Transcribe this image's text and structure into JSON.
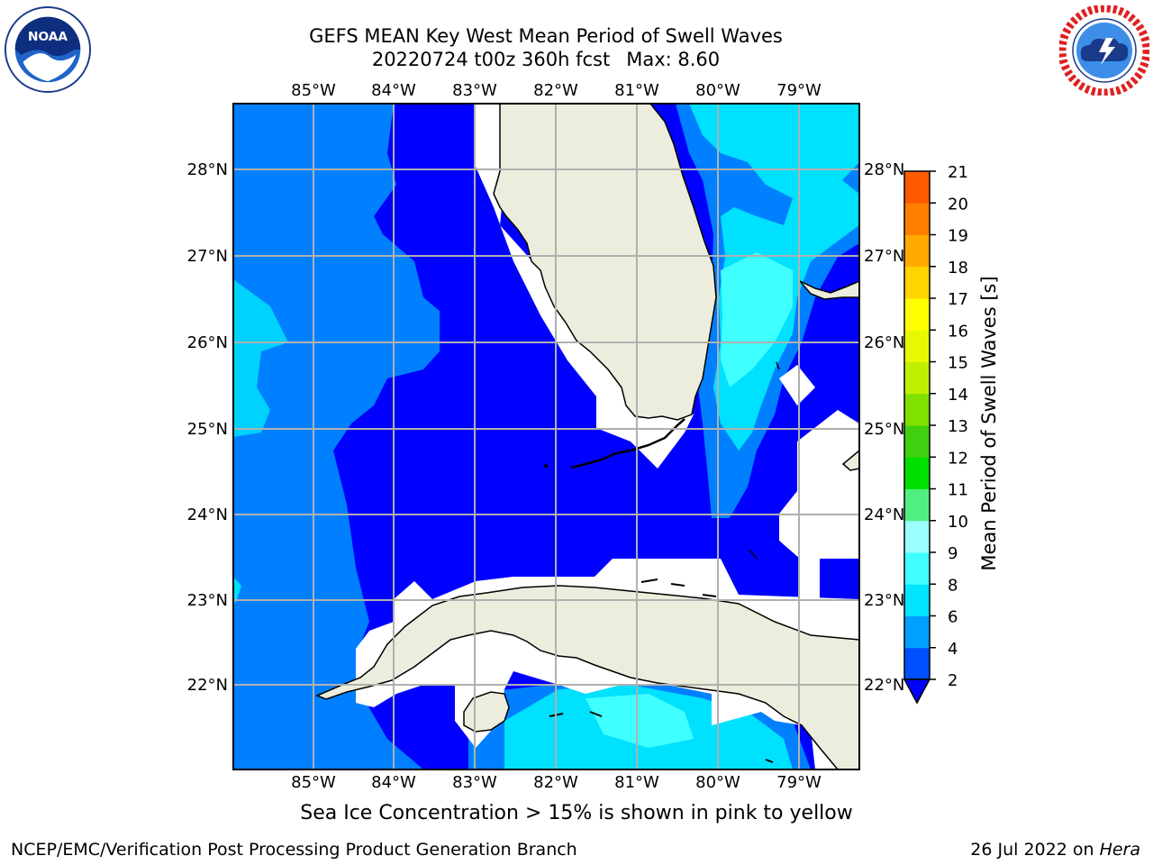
{
  "title_line1": "GEFS MEAN Key West Mean Period of Swell Waves",
  "title_line2_a": "20220724 t00z 360h fcst",
  "title_line2_b": "Max: 8.60",
  "lon_labels": [
    "85°W",
    "84°W",
    "83°W",
    "82°W",
    "81°W",
    "80°W",
    "79°W"
  ],
  "lat_labels": [
    "28°N",
    "27°N",
    "26°N",
    "25°N",
    "24°N",
    "23°N",
    "22°N"
  ],
  "colorbar": {
    "label": "Mean Period of Swell Waves [s]",
    "ticks": [
      "2",
      "4",
      "6",
      "8",
      "9",
      "10",
      "11",
      "12",
      "13",
      "14",
      "15",
      "16",
      "17",
      "18",
      "19",
      "20",
      "21"
    ],
    "colors": [
      "#0050ff",
      "#00a0ff",
      "#00e5ff",
      "#40ffff",
      "#9bffff",
      "#50f080",
      "#00e000",
      "#40d010",
      "#80e000",
      "#c0f000",
      "#e8f800",
      "#ffff00",
      "#ffd400",
      "#ffaa00",
      "#ff8000",
      "#ff5a00",
      "#ff2a00",
      "#ff0000"
    ],
    "under_color": "#0000ff"
  },
  "map": {
    "extent_lon": [
      -86,
      -78.3
    ],
    "extent_lat": [
      21.1,
      28.8
    ],
    "land_color": "#ededdd",
    "ocean_colors": {
      "band_2_4": "#0000ff",
      "band_4_6": "#0080ff",
      "band_6_8": "#00e0ff",
      "band_8_9": "#40ffff"
    },
    "grid_color": "#b0b0b0"
  },
  "footer_note": "Sea Ice Concentration > 15% is shown in pink to yellow",
  "footer_left": "NCEP/EMC/Verification Post Processing Product Generation Branch",
  "footer_right_date": "26 Jul 2022 on ",
  "footer_right_host": "Hera",
  "logos": {
    "left": "noaa-logo",
    "right": "nws-logo"
  },
  "noaa_text": "NOAA"
}
